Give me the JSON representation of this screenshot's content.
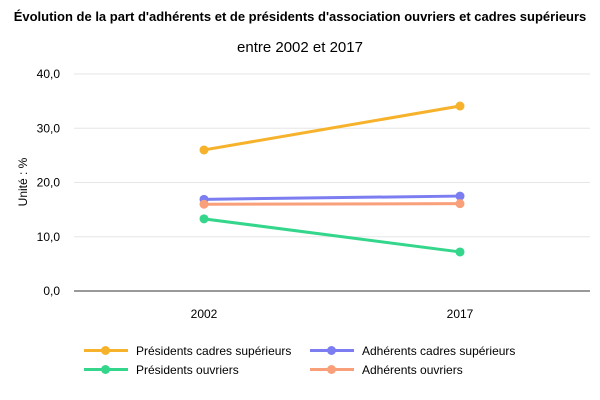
{
  "chart_data": {
    "type": "line",
    "title": "Évolution de la part d'adhérents et de présidents d'association ouvriers et cadres supérieurs",
    "subtitle": "entre 2002 et 2017",
    "ylabel": "Unité : %",
    "xlabel": "",
    "x": [
      "2002",
      "2017"
    ],
    "ylim": [
      0,
      40
    ],
    "yticks": [
      "0,0",
      "10,0",
      "20,0",
      "30,0",
      "40,0"
    ],
    "grid": true,
    "legend_position": "bottom",
    "series": [
      {
        "name": "Présidents cadres supérieurs",
        "color": "#f7b22b",
        "values": [
          26.0,
          34.1
        ]
      },
      {
        "name": "Adhérents cadres supérieurs",
        "color": "#7b7df0",
        "values": [
          16.9,
          17.5
        ]
      },
      {
        "name": "Présidents ouvriers",
        "color": "#33d68a",
        "values": [
          13.3,
          7.2
        ]
      },
      {
        "name": "Adhérents ouvriers",
        "color": "#f9a07a",
        "values": [
          16.0,
          16.1
        ]
      }
    ]
  }
}
